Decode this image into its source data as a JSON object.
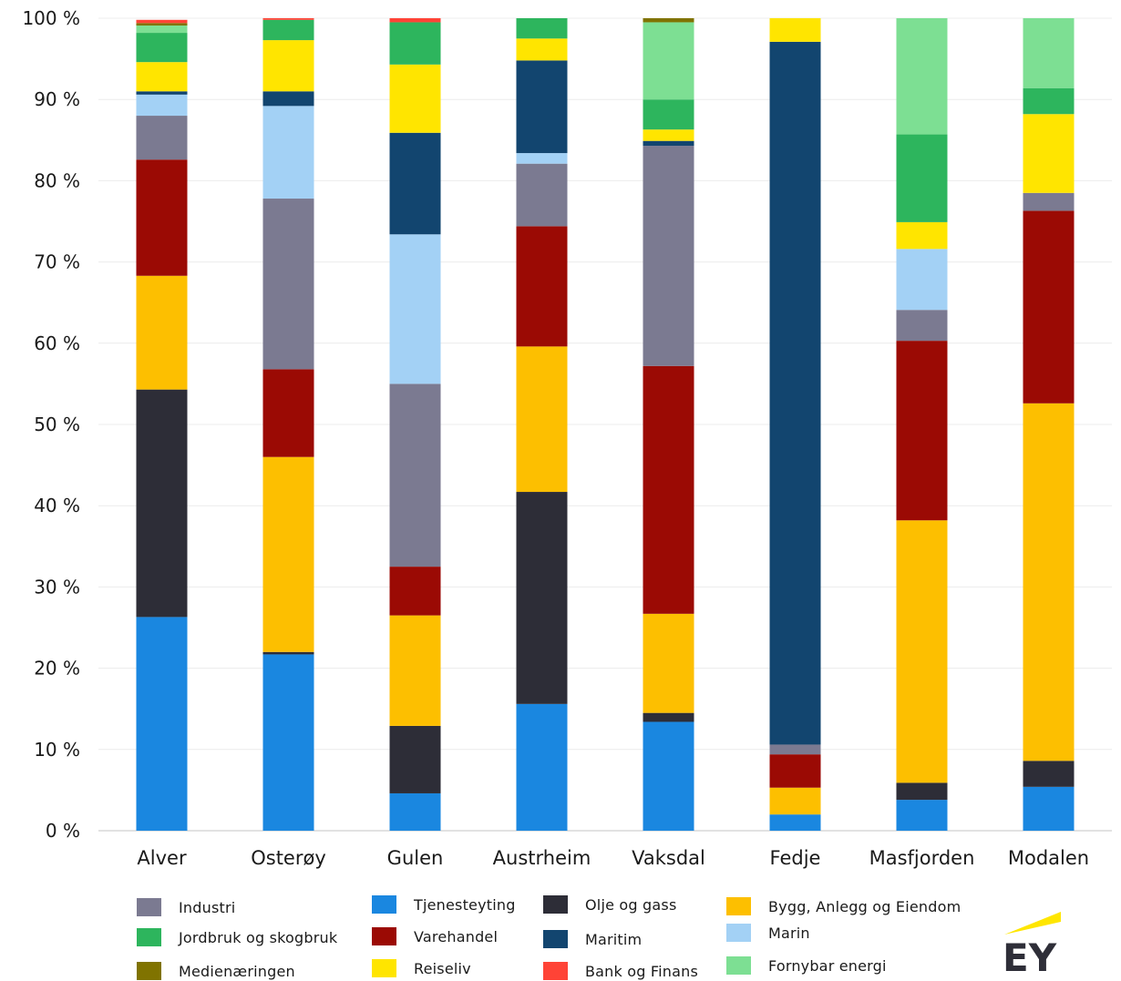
{
  "chart_data": {
    "type": "bar",
    "stacked": true,
    "categories": [
      "Alver",
      "Osterøy",
      "Gulen",
      "Austrheim",
      "Vaksdal",
      "Fedje",
      "Masfjorden",
      "Modalen"
    ],
    "ylim": [
      0,
      100
    ],
    "yticks": [
      "0 %",
      "10 %",
      "20 %",
      "30 %",
      "40 %",
      "50 %",
      "60 %",
      "70 %",
      "80 %",
      "90 %",
      "100 %"
    ],
    "grid": true,
    "legend_position": "bottom",
    "series": [
      {
        "name": "Tjenesteyting",
        "color": "#1a87e0",
        "values": [
          26.3,
          21.7,
          4.6,
          15.6,
          13.4,
          2.0,
          3.8,
          5.4
        ]
      },
      {
        "name": "Olje og gass",
        "color": "#2d2d37",
        "values": [
          28.0,
          0.3,
          8.3,
          26.1,
          1.1,
          0.0,
          2.1,
          3.2
        ]
      },
      {
        "name": "Bygg, Anlegg og Eiendom",
        "color": "#fdbf00",
        "values": [
          14.0,
          24.0,
          13.6,
          17.9,
          12.2,
          3.3,
          32.3,
          44.0
        ]
      },
      {
        "name": "Varehandel",
        "color": "#9b0a04",
        "values": [
          14.3,
          10.8,
          6.0,
          14.8,
          30.5,
          4.1,
          22.1,
          23.7
        ]
      },
      {
        "name": "Industri",
        "color": "#7b7a91",
        "values": [
          5.4,
          21.0,
          22.5,
          7.7,
          27.1,
          1.2,
          3.8,
          2.2
        ]
      },
      {
        "name": "Marin",
        "color": "#a3d1f5",
        "values": [
          2.6,
          11.4,
          18.4,
          1.3,
          0.0,
          0.0,
          7.5,
          0.0
        ]
      },
      {
        "name": "Maritim",
        "color": "#12456f",
        "values": [
          0.4,
          1.8,
          12.5,
          11.4,
          0.6,
          86.5,
          0.0,
          0.0
        ]
      },
      {
        "name": "Reiseliv",
        "color": "#ffe500",
        "values": [
          3.6,
          6.3,
          8.4,
          2.7,
          1.4,
          2.9,
          3.3,
          9.7
        ]
      },
      {
        "name": "Jordbruk og skogbruk",
        "color": "#2db55d",
        "values": [
          3.6,
          2.5,
          5.2,
          2.5,
          3.7,
          0.0,
          10.8,
          3.2
        ]
      },
      {
        "name": "Fornybar energi",
        "color": "#7ddf93",
        "values": [
          0.9,
          0.0,
          0.0,
          0.0,
          9.5,
          0.0,
          14.3,
          8.6
        ]
      },
      {
        "name": "Medienæringen",
        "color": "#807300",
        "values": [
          0.3,
          0.0,
          0.0,
          0.0,
          0.5,
          0.0,
          0.0,
          0.0
        ]
      },
      {
        "name": "Bank og Finans",
        "color": "#ff4336",
        "values": [
          0.4,
          0.2,
          0.5,
          0.0,
          0.0,
          0.0,
          0.0,
          0.0
        ]
      }
    ],
    "legend": [
      "Industri",
      "Jordbruk og skogbruk",
      "Medienæringen",
      "Tjenesteyting",
      "Varehandel",
      "Reiseliv",
      "Olje og gass",
      "Maritim",
      "Bank og Finans",
      "Bygg, Anlegg og Eiendom",
      "Marin",
      "Fornybar energi"
    ]
  },
  "logo": {
    "text": "EY",
    "bar_color": "#ffe600",
    "text_color": "#2e2e38"
  }
}
